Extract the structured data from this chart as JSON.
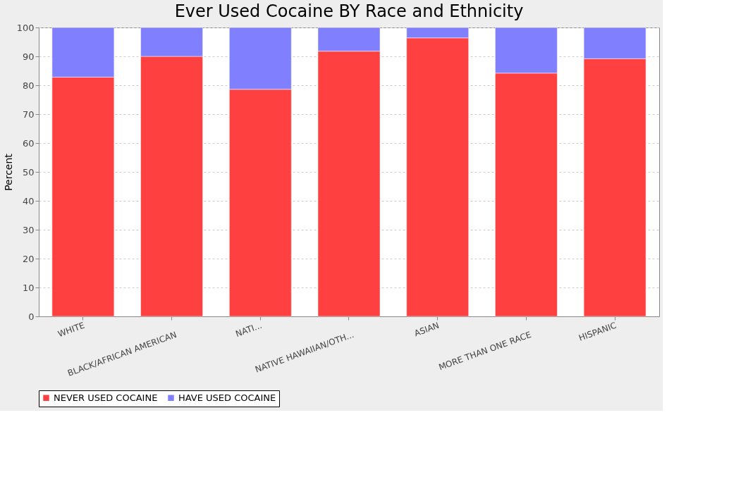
{
  "chart_data": {
    "type": "bar",
    "title": "Ever Used Cocaine BY Race and Ethnicity",
    "ylabel": "Percent",
    "categories": [
      "WHITE",
      "BLACK/AFRICAN AMERICAN",
      "NATI...",
      "NATIVE HAWAIIAN/OTH...",
      "ASIAN",
      "MORE THAN ONE RACE",
      "HISPANIC"
    ],
    "stacked": true,
    "series": [
      {
        "name": "NEVER USED COCAINE",
        "color": "#ff4040",
        "values": [
          82.8,
          90.0,
          78.6,
          91.8,
          96.4,
          84.2,
          89.2
        ]
      },
      {
        "name": "HAVE USED COCAINE",
        "color": "#8080ff",
        "values": [
          17.2,
          10.0,
          21.4,
          8.2,
          3.6,
          15.8,
          10.8
        ]
      }
    ],
    "ylim": [
      0,
      100
    ],
    "yticks": [
      0,
      10,
      20,
      30,
      40,
      50,
      60,
      70,
      80,
      90,
      100
    ],
    "grid": "y",
    "legend": "bottom"
  }
}
